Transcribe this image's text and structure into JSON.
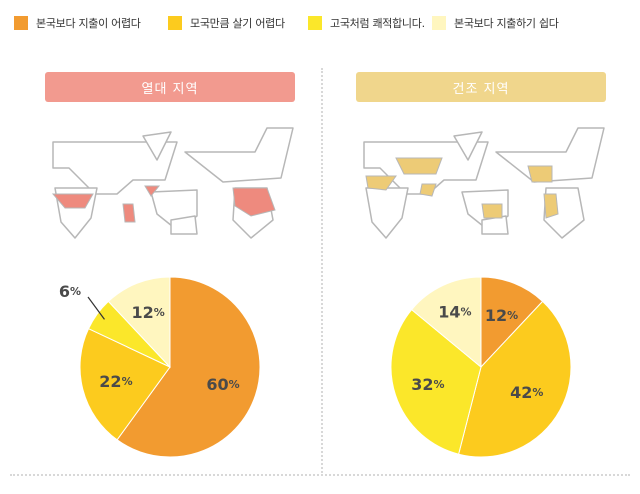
{
  "legend": [
    {
      "label": "본국보다 지출이 어렵다",
      "color": "#F29B30"
    },
    {
      "label": "모국만큼 살기 어렵다",
      "color": "#FCCB1E"
    },
    {
      "label": "고국처럼 쾌적합니다.",
      "color": "#FBE72A"
    },
    {
      "label": "본국보다 지출하기 쉽다",
      "color": "#FFF6BF"
    }
  ],
  "map_colors": {
    "tropical": "#EE8A7E",
    "dry": "#EDCB76"
  },
  "chart_data": [
    {
      "type": "pie",
      "title": "열대 지역",
      "title_color": "#F29A8F",
      "categories": [
        "본국보다 지출이 어렵다",
        "모국만큼 살기 어렵다",
        "고국처럼 쾌적합니다.",
        "본국보다 지출하기 쉽다"
      ],
      "values": [
        60,
        22,
        6,
        12
      ],
      "labels": [
        "60%",
        "22%",
        "6%",
        "12%"
      ],
      "colors": [
        "#F29B30",
        "#FCCB1E",
        "#FBE72A",
        "#FFF6BF"
      ]
    },
    {
      "type": "pie",
      "title": "건조 지역",
      "title_color": "#F0D68C",
      "categories": [
        "본국보다 지출이 어렵다",
        "모국만큼 살기 어렵다",
        "고국처럼 쾌적합니다.",
        "본국보다 지출하기 쉽다"
      ],
      "values": [
        12,
        42,
        32,
        14
      ],
      "labels": [
        "12%",
        "42%",
        "32%",
        "14%"
      ],
      "colors": [
        "#F29B30",
        "#FCCB1E",
        "#FBE72A",
        "#FFF6BF"
      ]
    }
  ]
}
